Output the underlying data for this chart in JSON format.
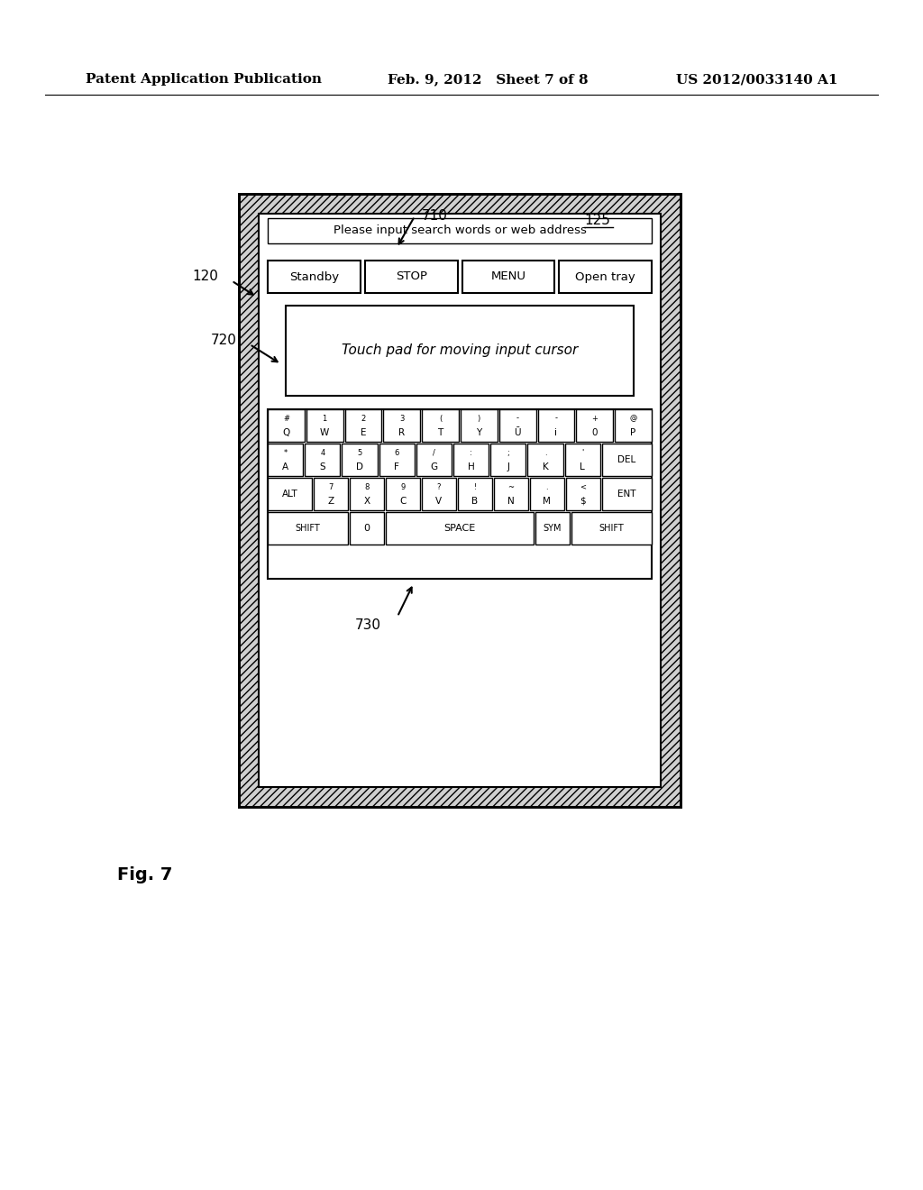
{
  "header_left": "Patent Application Publication",
  "header_mid": "Feb. 9, 2012   Sheet 7 of 8",
  "header_right": "US 2012/0033140 A1",
  "fig_label": "Fig. 7",
  "search_text": "Please input search words or web address",
  "touchpad_text": "Touch pad for moving input cursor",
  "label_120": "120",
  "label_125": "125",
  "label_710": "710",
  "label_720": "720",
  "label_730": "730",
  "buttons_row1": [
    "Standby",
    "STOP",
    "MENU",
    "Open tray"
  ],
  "row1_labels": [
    "#\nQ",
    "1\nW",
    "2\nE",
    "3\nR",
    "(\nT",
    ")\nY",
    "-\nŪ",
    "-\ni",
    "+\n0",
    "@\nP"
  ],
  "row2_labels": [
    "*\nA",
    "4\nS",
    "5\nD",
    "6\nF",
    "/\nG",
    ":\nH",
    ";\nJ",
    ".\nK",
    "'\nL",
    "DEL"
  ],
  "row3_mid_labels": [
    "7\nZ",
    "8\nX",
    "9\nC",
    "?\nV",
    "!\nB",
    "~\nN",
    ".\nM",
    "<\n$"
  ],
  "row4_labels": [
    "SHIFT",
    "0",
    "SPACE",
    "SYM",
    "SHIFT"
  ]
}
